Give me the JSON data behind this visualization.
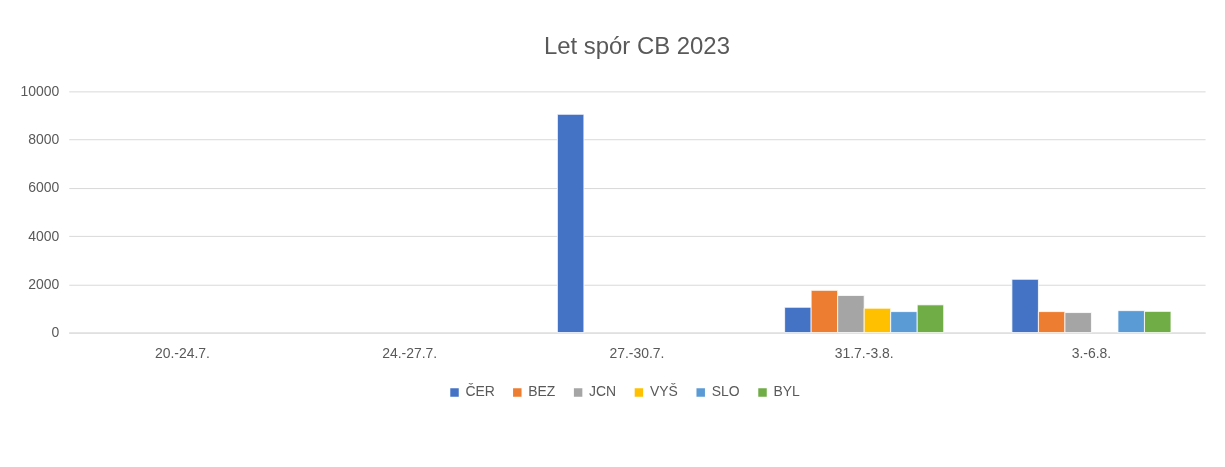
{
  "chart_data": {
    "type": "bar",
    "title": "Let spór CB 2023",
    "categories": [
      "20.-24.7.",
      "24.-27.7.",
      "27.-30.7.",
      "31.7.-3.8.",
      "3.-6.8."
    ],
    "series": [
      {
        "name": "ČER",
        "color": "#4472c4",
        "values": [
          null,
          null,
          9050,
          1050,
          2210
        ]
      },
      {
        "name": "BEZ",
        "color": "#ed7d31",
        "values": [
          null,
          null,
          null,
          1750,
          870
        ]
      },
      {
        "name": "JCN",
        "color": "#a5a5a5",
        "values": [
          null,
          null,
          null,
          1540,
          830
        ]
      },
      {
        "name": "VYŠ",
        "color": "#ffc000",
        "values": [
          null,
          null,
          null,
          1010,
          null
        ]
      },
      {
        "name": "SLO",
        "color": "#5b9bd5",
        "values": [
          null,
          null,
          null,
          870,
          910
        ]
      },
      {
        "name": "BYL",
        "color": "#70ad47",
        "values": [
          null,
          null,
          null,
          1150,
          880
        ]
      }
    ],
    "ylim": [
      0,
      10000
    ],
    "yticks": [
      0,
      2000,
      4000,
      6000,
      8000,
      10000
    ],
    "grid": "y",
    "legend": "bottom"
  }
}
